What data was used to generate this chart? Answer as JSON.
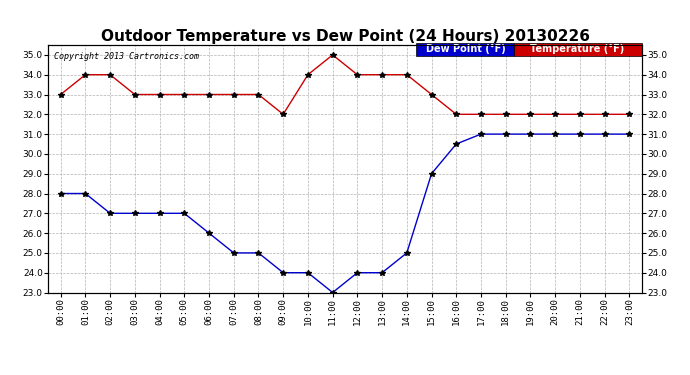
{
  "title": "Outdoor Temperature vs Dew Point (24 Hours) 20130226",
  "copyright": "Copyright 2013 Cartronics.com",
  "hours": [
    "00:00",
    "01:00",
    "02:00",
    "03:00",
    "04:00",
    "05:00",
    "06:00",
    "07:00",
    "08:00",
    "09:00",
    "10:00",
    "11:00",
    "12:00",
    "13:00",
    "14:00",
    "15:00",
    "16:00",
    "17:00",
    "18:00",
    "19:00",
    "20:00",
    "21:00",
    "22:00",
    "23:00"
  ],
  "temperature": [
    33.0,
    34.0,
    34.0,
    33.0,
    33.0,
    33.0,
    33.0,
    33.0,
    33.0,
    32.0,
    34.0,
    35.0,
    34.0,
    34.0,
    34.0,
    33.0,
    32.0,
    32.0,
    32.0,
    32.0,
    32.0,
    32.0,
    32.0,
    32.0
  ],
  "dew_point": [
    28.0,
    28.0,
    27.0,
    27.0,
    27.0,
    27.0,
    26.0,
    25.0,
    25.0,
    24.0,
    24.0,
    23.0,
    24.0,
    24.0,
    25.0,
    29.0,
    30.5,
    31.0,
    31.0,
    31.0,
    31.0,
    31.0,
    31.0,
    31.0
  ],
  "ylim": [
    23.0,
    35.5
  ],
  "yticks": [
    23.0,
    24.0,
    25.0,
    26.0,
    27.0,
    28.0,
    29.0,
    30.0,
    31.0,
    32.0,
    33.0,
    34.0,
    35.0
  ],
  "temp_color": "#cc0000",
  "dew_color": "#0000cc",
  "marker_color": "#000000",
  "bg_color": "#ffffff",
  "grid_color": "#aaaaaa",
  "title_fontsize": 11,
  "tick_fontsize": 6.5,
  "copyright_fontsize": 6,
  "legend_fontsize": 7,
  "dew_legend_bg": "#0000cc",
  "temp_legend_bg": "#cc0000",
  "dew_legend_label": "Dew Point (°F)",
  "temp_legend_label": "Temperature (°F)"
}
